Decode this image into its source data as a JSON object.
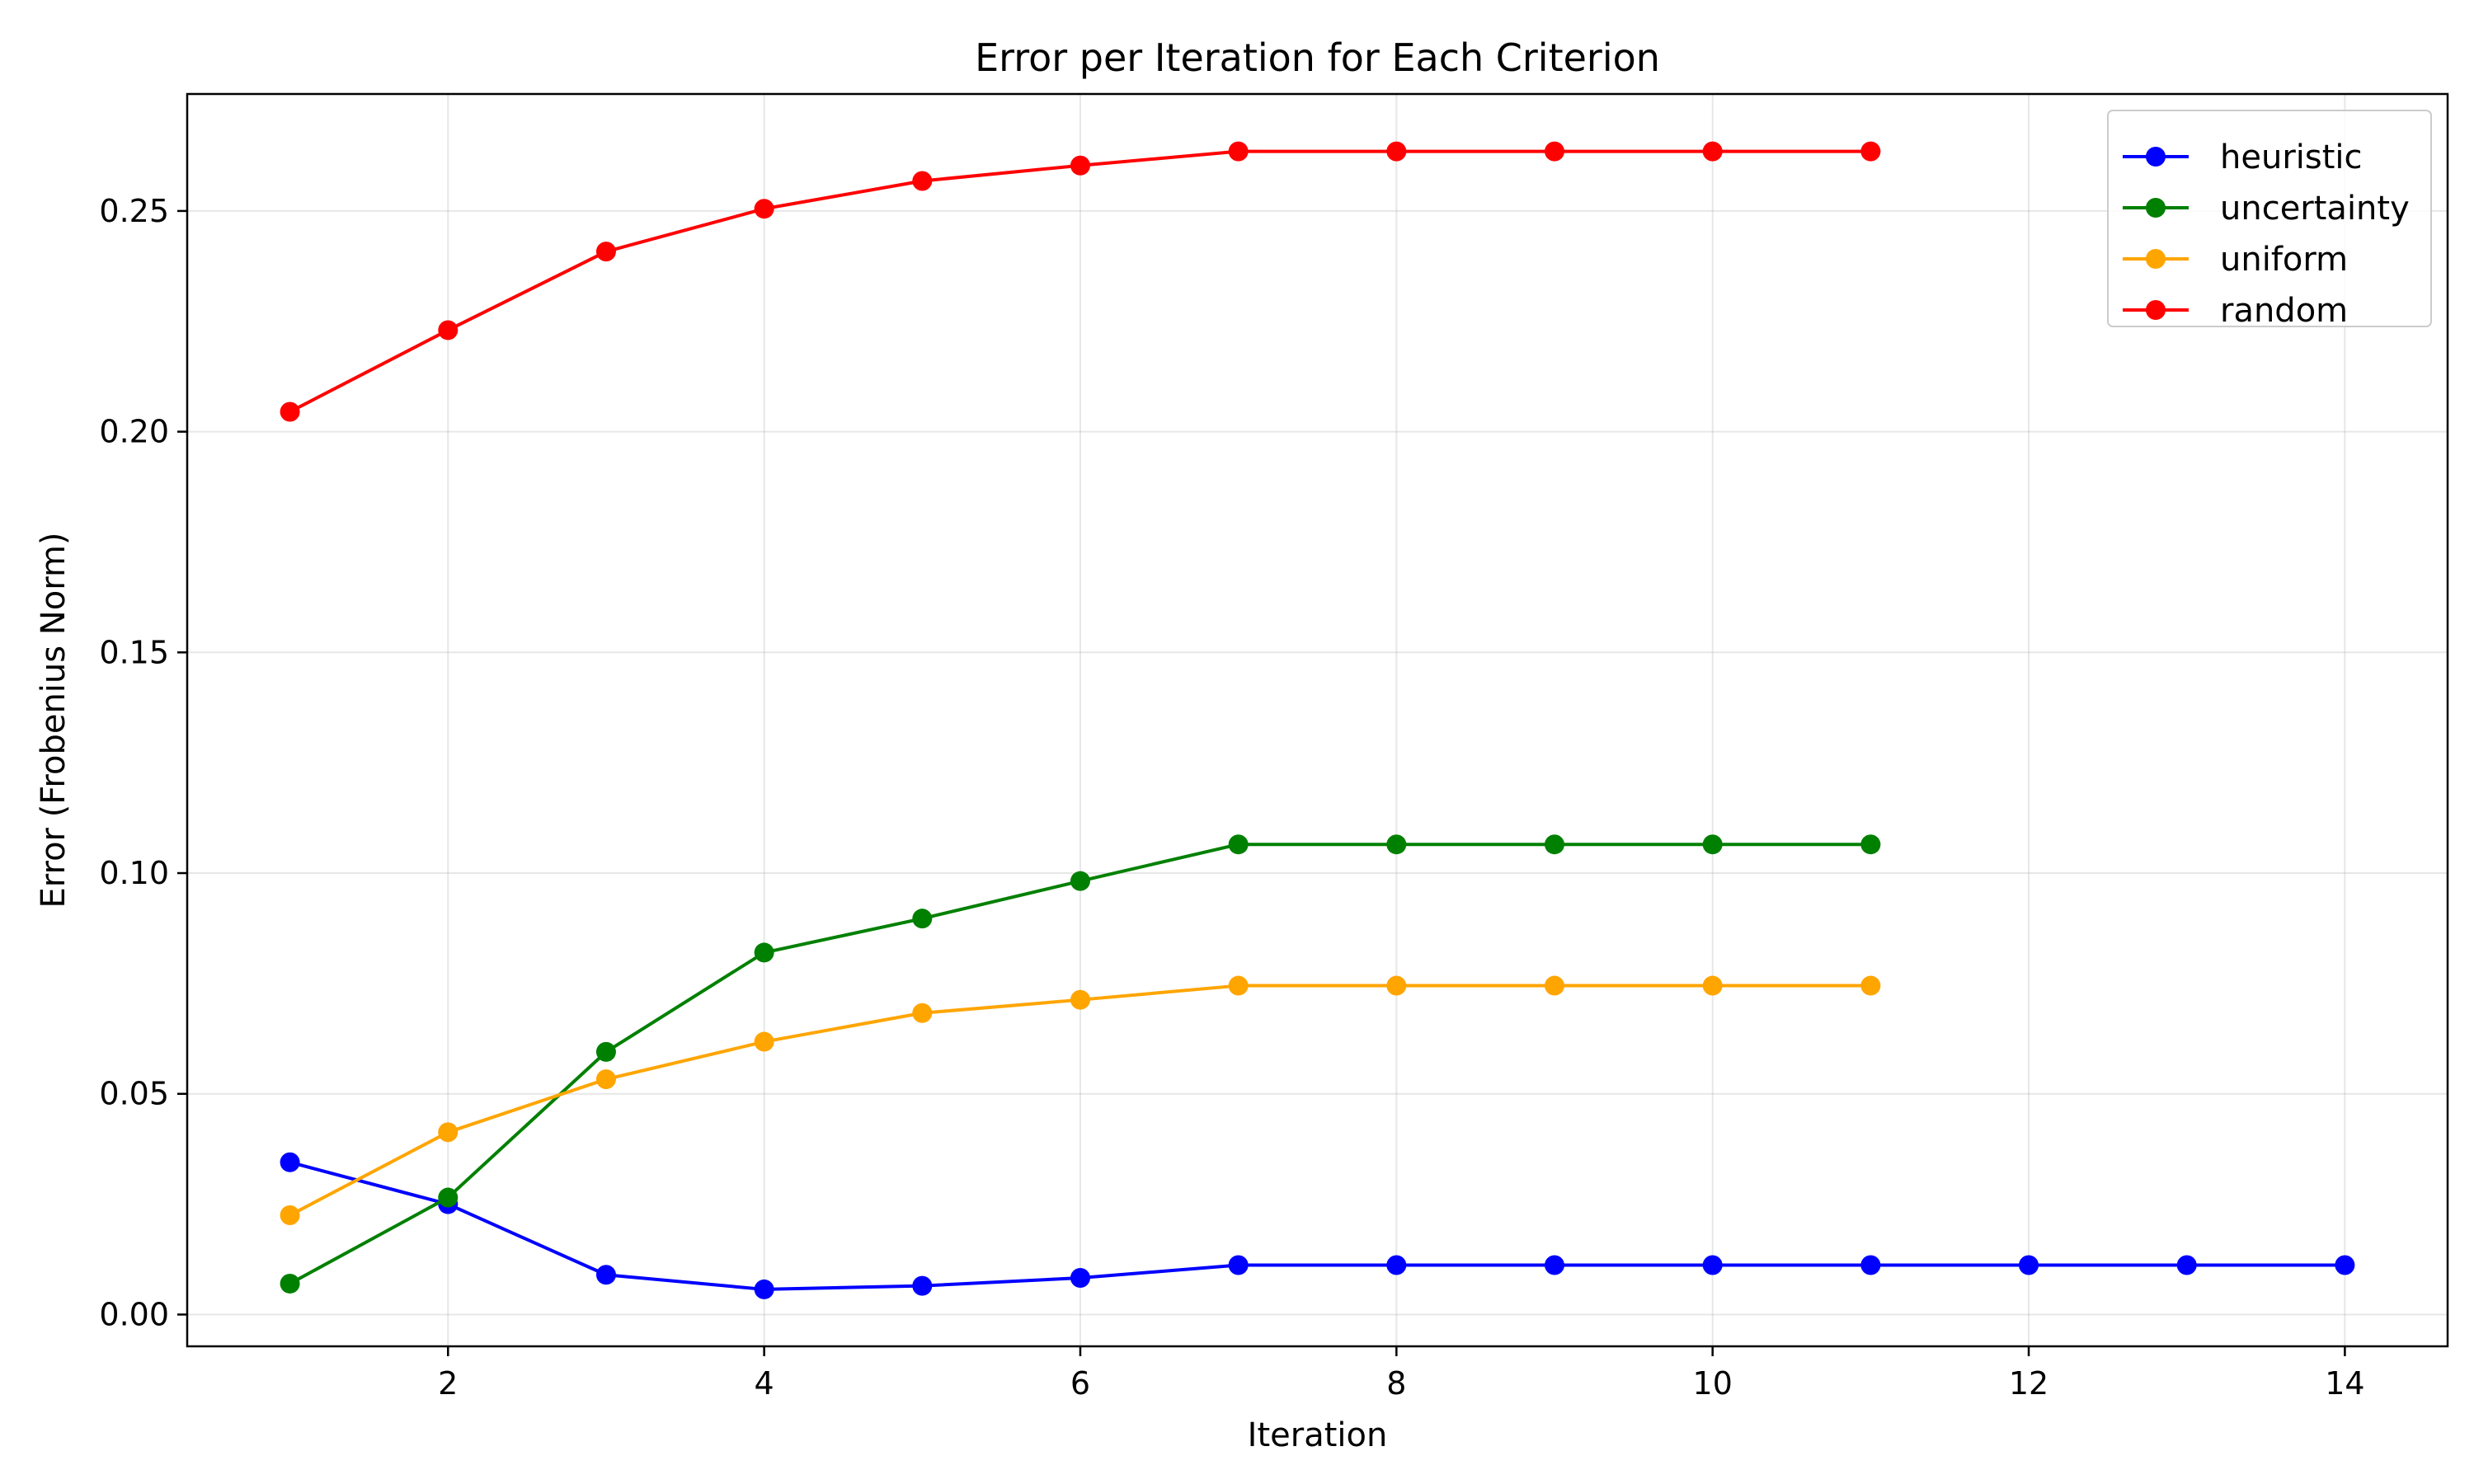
{
  "chart_data": {
    "type": "line",
    "title": "Error per Iteration for Each Criterion",
    "xlabel": "Iteration",
    "ylabel": "Error (Frobenius Norm)",
    "xlim": [
      0.35,
      14.65
    ],
    "ylim": [
      -0.0072,
      0.2765
    ],
    "xticks": [
      2,
      4,
      6,
      8,
      10,
      12,
      14
    ],
    "yticks": [
      0.0,
      0.05,
      0.1,
      0.15,
      0.2,
      0.25
    ],
    "ytick_labels": [
      "0.00",
      "0.05",
      "0.10",
      "0.15",
      "0.20",
      "0.25"
    ],
    "grid": true,
    "legend_position": "top-right",
    "series": [
      {
        "name": "heuristic",
        "color": "#0000ff",
        "x": [
          1,
          2,
          3,
          4,
          5,
          6,
          7,
          8,
          9,
          10,
          11,
          12,
          13,
          14
        ],
        "y": [
          0.0345,
          0.025,
          0.009,
          0.0057,
          0.0065,
          0.0083,
          0.0112,
          0.0112,
          0.0112,
          0.0112,
          0.0112,
          0.0112,
          0.0112,
          0.0112
        ]
      },
      {
        "name": "uncertainty",
        "color": "#008000",
        "x": [
          1,
          2,
          3,
          4,
          5,
          6,
          7,
          8,
          9,
          10,
          11
        ],
        "y": [
          0.007,
          0.0265,
          0.0595,
          0.082,
          0.0897,
          0.0982,
          0.1065,
          0.1065,
          0.1065,
          0.1065,
          0.1065
        ]
      },
      {
        "name": "uniform",
        "color": "#ffa500",
        "x": [
          1,
          2,
          3,
          4,
          5,
          6,
          7,
          8,
          9,
          10,
          11
        ],
        "y": [
          0.0225,
          0.0413,
          0.0533,
          0.0618,
          0.0683,
          0.0713,
          0.0745,
          0.0745,
          0.0745,
          0.0745,
          0.0745
        ]
      },
      {
        "name": "random",
        "color": "#ff0000",
        "x": [
          1,
          2,
          3,
          4,
          5,
          6,
          7,
          8,
          9,
          10,
          11
        ],
        "y": [
          0.2045,
          0.223,
          0.2408,
          0.2505,
          0.2568,
          0.2603,
          0.2635,
          0.2635,
          0.2635,
          0.2635,
          0.2635
        ]
      }
    ]
  }
}
